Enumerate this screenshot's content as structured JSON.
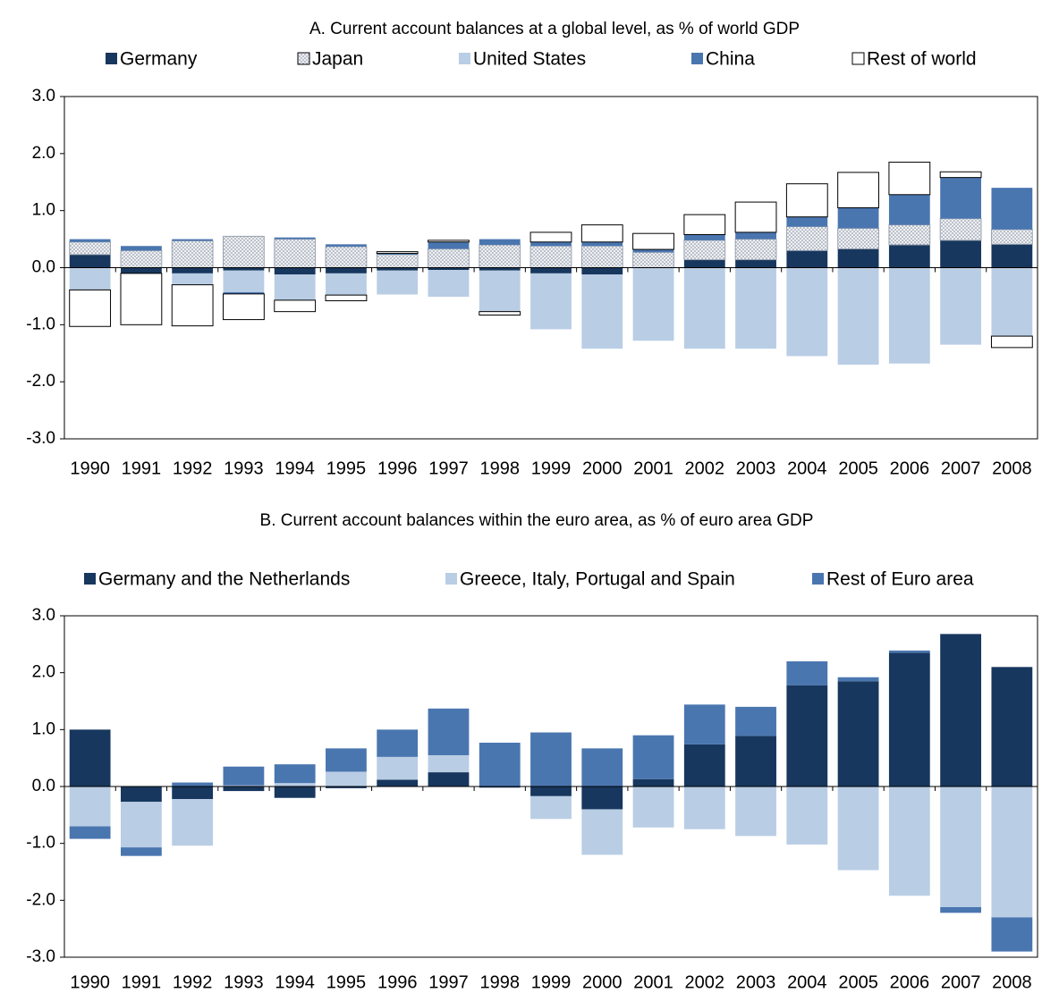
{
  "chart_data": [
    {
      "type": "bar",
      "stacked": true,
      "title": "A.       Current account balances at a global level, as % of world GDP",
      "categories": [
        "1990",
        "1991",
        "1992",
        "1993",
        "1994",
        "1995",
        "1996",
        "1997",
        "1998",
        "1999",
        "2000",
        "2001",
        "2002",
        "2003",
        "2004",
        "2005",
        "2006",
        "2007",
        "2008"
      ],
      "series": [
        {
          "name": "Germany",
          "color": "#17375e",
          "values": [
            0.23,
            -0.1,
            -0.1,
            -0.05,
            -0.12,
            -0.1,
            -0.05,
            -0.04,
            -0.05,
            -0.1,
            -0.12,
            0.0,
            0.14,
            0.14,
            0.3,
            0.33,
            0.4,
            0.48,
            0.41
          ]
        },
        {
          "name": "Japan",
          "color": "#dfe3ea",
          "pattern": "dots",
          "values": [
            0.22,
            0.3,
            0.47,
            0.55,
            0.5,
            0.37,
            0.23,
            0.33,
            0.4,
            0.38,
            0.38,
            0.27,
            0.34,
            0.36,
            0.42,
            0.36,
            0.35,
            0.38,
            0.26
          ]
        },
        {
          "name": "United States",
          "color": "#b9cde5",
          "values": [
            -0.39,
            0.0,
            -0.2,
            -0.38,
            -0.45,
            -0.38,
            -0.42,
            -0.47,
            -0.72,
            -0.98,
            -1.3,
            -1.28,
            -1.42,
            -1.42,
            -1.55,
            -1.7,
            -1.68,
            -1.35,
            -1.2
          ]
        },
        {
          "name": "China",
          "color": "#4a76b0",
          "values": [
            0.05,
            0.08,
            0.03,
            -0.03,
            0.03,
            0.04,
            0.02,
            0.12,
            0.1,
            0.07,
            0.07,
            0.05,
            0.1,
            0.12,
            0.17,
            0.36,
            0.53,
            0.72,
            0.73
          ]
        },
        {
          "name": "Rest of world",
          "color": "#ffffff",
          "values": [
            -0.64,
            -0.9,
            -0.72,
            -0.45,
            -0.2,
            -0.1,
            0.03,
            0.03,
            -0.06,
            0.17,
            0.3,
            0.28,
            0.35,
            0.53,
            0.58,
            0.62,
            0.57,
            0.1,
            -0.2
          ]
        }
      ],
      "ylim": [
        -3,
        3
      ],
      "yticks": [
        {
          "value": -3,
          "label": "-3.0"
        },
        {
          "value": -2,
          "label": "-2.0"
        },
        {
          "value": -1,
          "label": "-1.0"
        },
        {
          "value": 0,
          "label": "0.0"
        },
        {
          "value": 1,
          "label": "1.0"
        },
        {
          "value": 2,
          "label": "2.0"
        },
        {
          "value": 3,
          "label": "3.0"
        }
      ],
      "legend": "top"
    },
    {
      "type": "bar",
      "stacked": true,
      "title": "B. Current account balances within the euro area, as % of euro area GDP",
      "categories": [
        "1990",
        "1991",
        "1992",
        "1993",
        "1994",
        "1995",
        "1996",
        "1997",
        "1998",
        "1999",
        "2000",
        "2001",
        "2002",
        "2003",
        "2004",
        "2005",
        "2006",
        "2007",
        "2008"
      ],
      "series": [
        {
          "name": "Germany and the Netherlands",
          "color": "#17375e",
          "values": [
            1.0,
            -0.27,
            -0.22,
            -0.08,
            -0.2,
            -0.03,
            0.12,
            0.25,
            -0.02,
            -0.17,
            -0.4,
            0.13,
            0.74,
            0.89,
            1.78,
            1.85,
            2.35,
            2.68,
            2.1
          ]
        },
        {
          "name": "Greece, Italy, Portugal and Spain",
          "color": "#b9cde5",
          "values": [
            -0.7,
            -0.8,
            -0.82,
            0.02,
            0.06,
            0.26,
            0.4,
            0.3,
            0.0,
            -0.4,
            -0.8,
            -0.72,
            -0.75,
            -0.87,
            -1.02,
            -1.47,
            -1.92,
            -2.12,
            -2.3
          ]
        },
        {
          "name": "Rest of Euro area",
          "color": "#4a76b0",
          "values": [
            -0.22,
            -0.15,
            0.07,
            0.33,
            0.33,
            0.41,
            0.48,
            0.82,
            0.77,
            0.95,
            0.67,
            0.77,
            0.7,
            0.51,
            0.42,
            0.07,
            0.04,
            -0.1,
            -0.6
          ]
        }
      ],
      "ylim": [
        -3,
        3
      ],
      "yticks": [
        {
          "value": -3,
          "label": "-3.0"
        },
        {
          "value": -2,
          "label": "-2.0"
        },
        {
          "value": -1,
          "label": "-1.0"
        },
        {
          "value": 0,
          "label": "0.0"
        },
        {
          "value": 1,
          "label": "1.0"
        },
        {
          "value": 2,
          "label": "2.0"
        },
        {
          "value": 3,
          "label": "3.0"
        }
      ],
      "legend": "top"
    }
  ]
}
